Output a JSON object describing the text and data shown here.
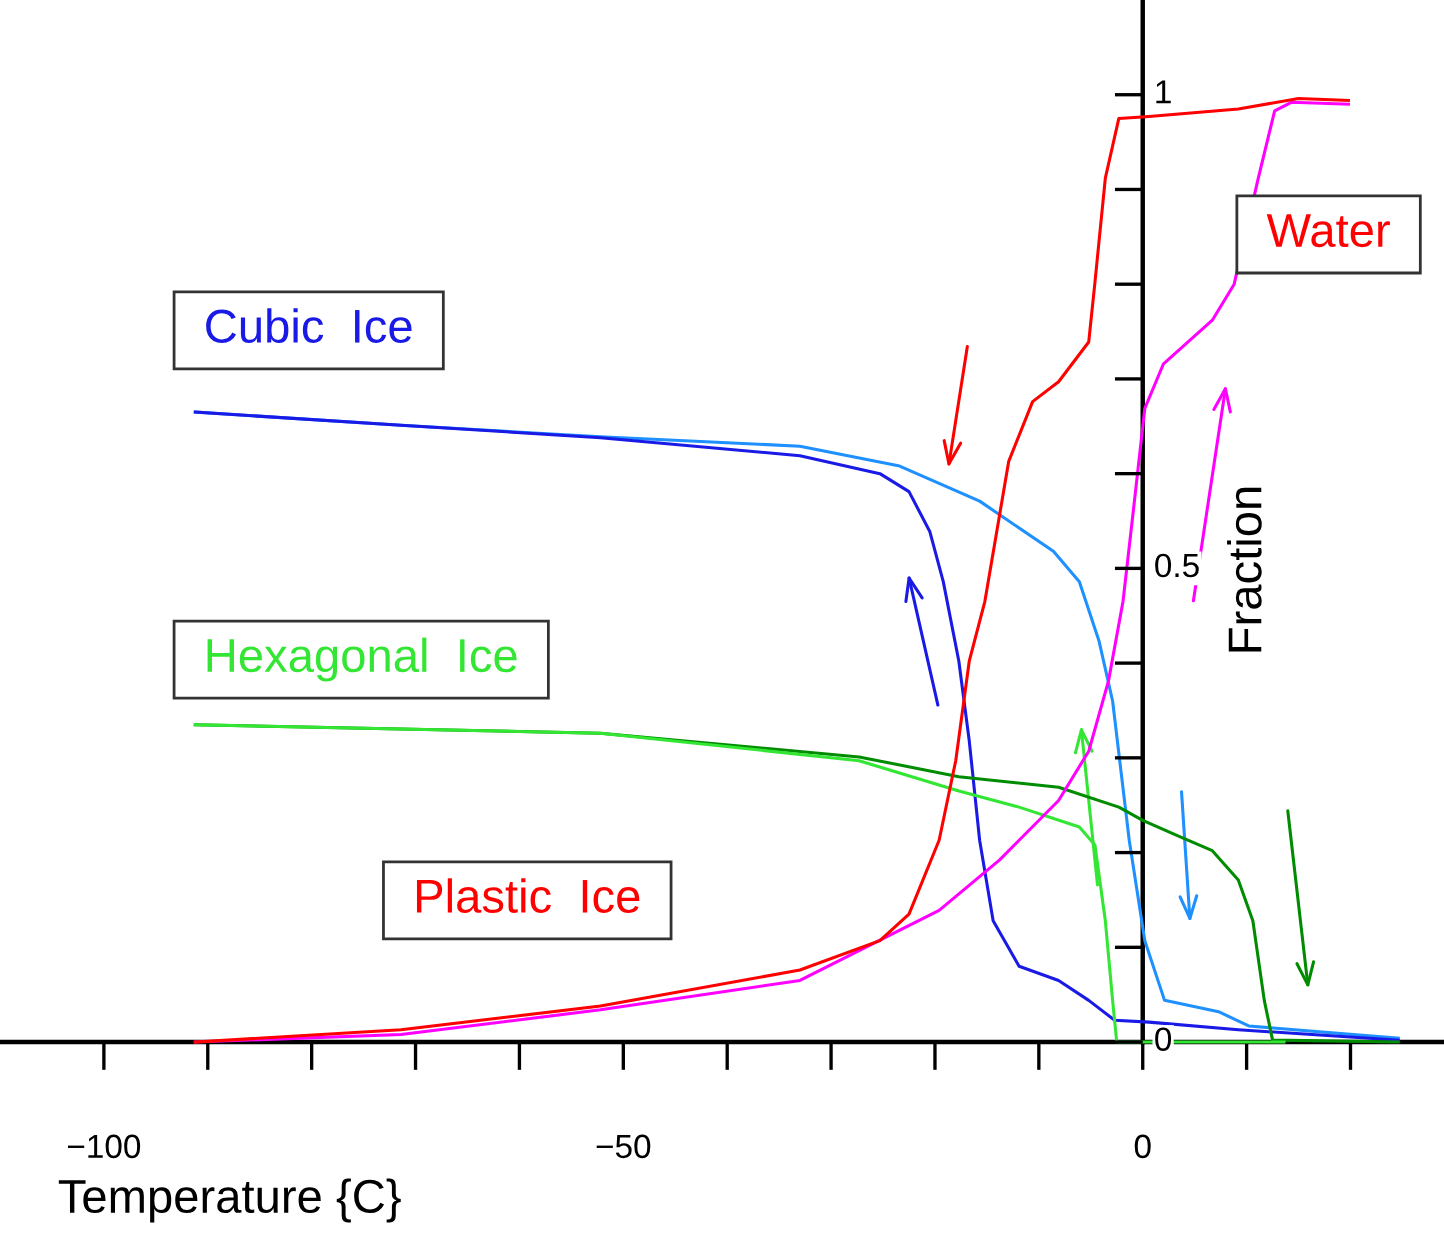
{
  "chart_data": {
    "type": "line",
    "xlabel": "Temperature {C}",
    "ylabel": "Fraction",
    "xlim": [
      -110,
      29
    ],
    "ylim": [
      0,
      1.1
    ],
    "xticks": [
      -100,
      {
        "value": -90,
        "label": null
      },
      {
        "value": -80,
        "label": null
      },
      {
        "value": -70,
        "label": null
      },
      {
        "value": -60,
        "label": null
      },
      -50,
      {
        "value": -40,
        "label": null
      },
      {
        "value": -30,
        "label": null
      },
      {
        "value": -20,
        "label": null
      },
      {
        "value": -10,
        "label": null
      },
      0,
      {
        "value": 10,
        "label": null
      },
      {
        "value": 20,
        "label": null
      }
    ],
    "yticks": [
      0,
      {
        "value": 0.1,
        "label": null
      },
      {
        "value": 0.2,
        "label": null
      },
      {
        "value": 0.3,
        "label": null
      },
      {
        "value": 0.4,
        "label": null
      },
      0.5,
      {
        "value": 0.6,
        "label": null
      },
      {
        "value": 0.7,
        "label": null
      },
      {
        "value": 0.8,
        "label": null
      },
      {
        "value": 0.9,
        "label": null
      },
      1
    ],
    "marker": "none",
    "line_style": "solid",
    "series": [
      {
        "color": "#1e90ff",
        "x": [
          -91.2,
          -71.4,
          -52.2,
          -33,
          -23.4,
          -15.7,
          -8.6,
          -6.1,
          -4.2,
          -2.9,
          -1.3,
          0.2,
          2.1,
          7.3,
          10.2,
          24.6
        ],
        "values": [
          0.665,
          0.651,
          0.639,
          0.629,
          0.608,
          0.571,
          0.518,
          0.486,
          0.423,
          0.36,
          0.213,
          0.107,
          0.044,
          0.032,
          0.017,
          0.004
        ]
      },
      {
        "color": "#1a1ae6",
        "x": [
          -91.2,
          -71.4,
          -52.2,
          -33,
          -25.3,
          -22.5,
          -20.5,
          -19.2,
          -17.7,
          -16.7,
          -15.7,
          -14.4,
          -11.9,
          -8.1,
          -5.2,
          -2.7,
          0.6,
          9.2,
          24.6
        ],
        "values": [
          0.665,
          0.651,
          0.638,
          0.619,
          0.6,
          0.581,
          0.539,
          0.486,
          0.402,
          0.318,
          0.213,
          0.128,
          0.08,
          0.065,
          0.044,
          0.023,
          0.021,
          0.013,
          0.002
        ]
      },
      {
        "color": "#008c00",
        "x": [
          -91.2,
          -52.2,
          -27.3,
          -17.7,
          -8.1,
          -2.3,
          0,
          3.5,
          6.7,
          9.2,
          10.6,
          11.7,
          12.5,
          24.6
        ],
        "values": [
          0.335,
          0.326,
          0.301,
          0.28,
          0.269,
          0.248,
          0.234,
          0.217,
          0.202,
          0.171,
          0.128,
          0.044,
          0.002,
          0
        ]
      },
      {
        "color": "#33e633",
        "x": [
          -91.2,
          -52.2,
          -27.3,
          -17.7,
          -11.9,
          -6.1,
          -4.6,
          -3.6,
          -2.9,
          -2.5,
          13.6
        ],
        "values": [
          0.335,
          0.326,
          0.297,
          0.265,
          0.248,
          0.227,
          0.208,
          0.128,
          0.044,
          0,
          0
        ]
      },
      {
        "color": "#ff00ff",
        "x": [
          -91.2,
          -71.4,
          -52.2,
          -33,
          -19.6,
          -13.8,
          -8.1,
          -5.2,
          -3.3,
          -1.9,
          -0.8,
          0.2,
          2,
          6.7,
          8.8,
          11.1,
          12.7,
          14.3,
          19.8
        ],
        "values": [
          0,
          0.008,
          0.034,
          0.065,
          0.139,
          0.192,
          0.255,
          0.307,
          0.381,
          0.465,
          0.571,
          0.669,
          0.716,
          0.762,
          0.8,
          0.911,
          0.983,
          0.992,
          0.99
        ]
      },
      {
        "color": "#ff0000",
        "x": [
          -91.2,
          -71.4,
          -52.2,
          -33,
          -25.3,
          -22.5,
          -19.6,
          -18,
          -16.7,
          -15.2,
          -12.9,
          -10.6,
          -8.1,
          -5.2,
          -4.6,
          -3.6,
          -2.3,
          0.6,
          9.2,
          15,
          19.8
        ],
        "values": [
          0,
          0.013,
          0.038,
          0.076,
          0.107,
          0.135,
          0.213,
          0.297,
          0.402,
          0.465,
          0.613,
          0.676,
          0.697,
          0.739,
          0.802,
          0.912,
          0.975,
          0.977,
          0.985,
          0.996,
          0.994
        ]
      }
    ],
    "annotations": [
      "Cubic  Ice",
      "Hexagonal  Ice",
      "Plastic  Ice",
      "Water"
    ]
  }
}
